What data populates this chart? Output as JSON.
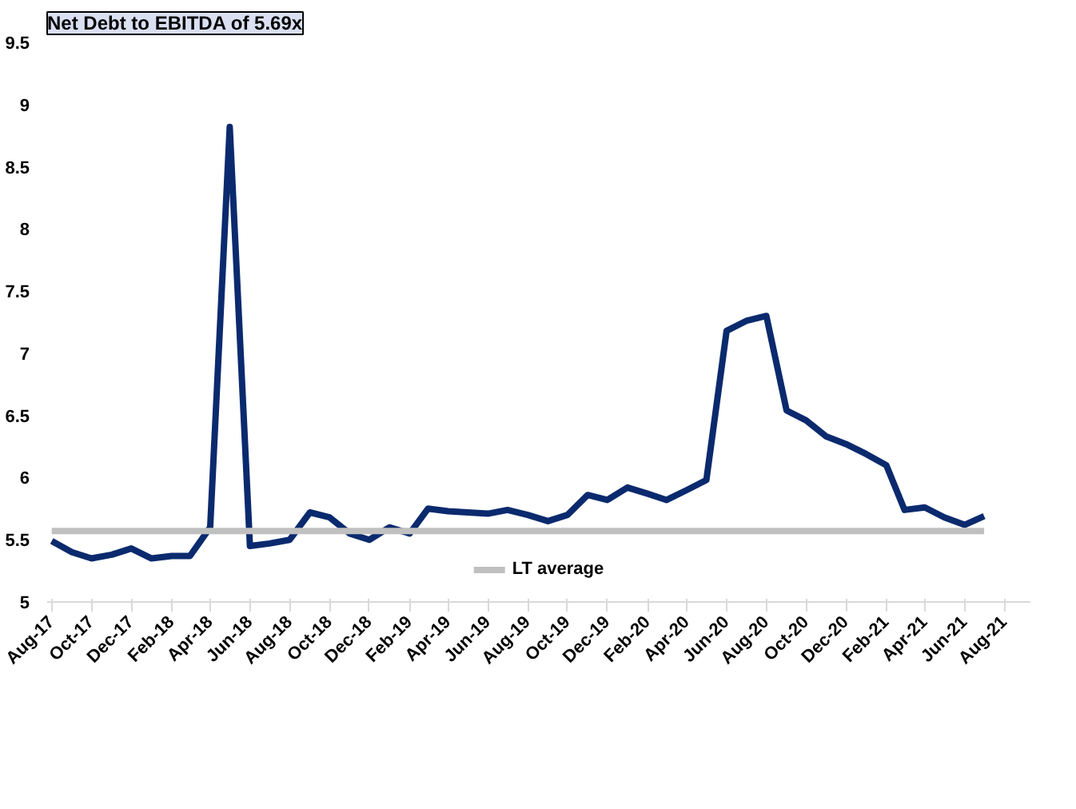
{
  "chart_data": {
    "type": "line",
    "title": "Net Debt to EBITDA of 5.69x",
    "x": [
      "2017-08",
      "2017-09",
      "2017-10",
      "2017-11",
      "2017-12",
      "2018-01",
      "2018-02",
      "2018-03",
      "2018-04",
      "2018-05",
      "2018-06",
      "2018-07",
      "2018-08",
      "2018-09",
      "2018-10",
      "2018-11",
      "2018-12",
      "2019-01",
      "2019-02",
      "2019-03",
      "2019-04",
      "2019-05",
      "2019-06",
      "2019-07",
      "2019-08",
      "2019-09",
      "2019-10",
      "2019-11",
      "2019-12",
      "2020-01",
      "2020-02",
      "2020-03",
      "2020-04",
      "2020-05",
      "2020-06",
      "2020-07",
      "2020-08",
      "2020-09",
      "2020-10",
      "2020-11",
      "2020-12",
      "2021-01",
      "2021-02",
      "2021-03",
      "2021-04",
      "2021-05",
      "2021-06",
      "2021-07"
    ],
    "series": [
      {
        "color": "#0b2a6e",
        "values": [
          5.49,
          5.4,
          5.35,
          5.38,
          5.43,
          5.35,
          5.37,
          5.37,
          5.6,
          8.82,
          5.45,
          5.47,
          5.5,
          5.72,
          5.68,
          5.55,
          5.5,
          5.6,
          5.55,
          5.75,
          5.73,
          5.72,
          5.71,
          5.74,
          5.7,
          5.65,
          5.7,
          5.86,
          5.82,
          5.92,
          5.87,
          5.82,
          5.9,
          5.98,
          7.18,
          7.26,
          7.3,
          6.54,
          6.46,
          6.33,
          6.27,
          6.19,
          6.1,
          5.74,
          5.76,
          5.68,
          5.62,
          5.69
        ]
      },
      {
        "name": "LT average",
        "color": "#c0c0c0",
        "values": [
          5.57,
          5.57,
          5.57,
          5.57,
          5.57,
          5.57,
          5.57,
          5.57,
          5.57,
          5.57,
          5.57,
          5.57,
          5.57,
          5.57,
          5.57,
          5.57,
          5.57,
          5.57,
          5.57,
          5.57,
          5.57,
          5.57,
          5.57,
          5.57,
          5.57,
          5.57,
          5.57,
          5.57,
          5.57,
          5.57,
          5.57,
          5.57,
          5.57,
          5.57,
          5.57,
          5.57,
          5.57,
          5.57,
          5.57,
          5.57,
          5.57,
          5.57,
          5.57,
          5.57,
          5.57,
          5.57,
          5.57,
          5.57
        ]
      }
    ],
    "xlim": [
      "2017-07-25",
      "2021-09-10"
    ],
    "xticks": [
      {
        "value": "2017-08",
        "label": "Aug-17"
      },
      {
        "value": "2017-10",
        "label": "Oct-17"
      },
      {
        "value": "2017-12",
        "label": "Dec-17"
      },
      {
        "value": "2018-02",
        "label": "Feb-18"
      },
      {
        "value": "2018-04",
        "label": "Apr-18"
      },
      {
        "value": "2018-06",
        "label": "Jun-18"
      },
      {
        "value": "2018-08",
        "label": "Aug-18"
      },
      {
        "value": "2018-10",
        "label": "Oct-18"
      },
      {
        "value": "2018-12",
        "label": "Dec-18"
      },
      {
        "value": "2019-02",
        "label": "Feb-19"
      },
      {
        "value": "2019-04",
        "label": "Apr-19"
      },
      {
        "value": "2019-06",
        "label": "Jun-19"
      },
      {
        "value": "2019-08",
        "label": "Aug-19"
      },
      {
        "value": "2019-10",
        "label": "Oct-19"
      },
      {
        "value": "2019-12",
        "label": "Dec-19"
      },
      {
        "value": "2020-02",
        "label": "Feb-20"
      },
      {
        "value": "2020-04",
        "label": "Apr-20"
      },
      {
        "value": "2020-06",
        "label": "Jun-20"
      },
      {
        "value": "2020-08",
        "label": "Aug-20"
      },
      {
        "value": "2020-10",
        "label": "Oct-20"
      },
      {
        "value": "2020-12",
        "label": "Dec-20"
      },
      {
        "value": "2021-02",
        "label": "Feb-21"
      },
      {
        "value": "2021-04",
        "label": "Apr-21"
      },
      {
        "value": "2021-06",
        "label": "Jun-21"
      },
      {
        "value": "2021-08",
        "label": "Aug-21"
      }
    ],
    "ylim": [
      5,
      9.5
    ],
    "yticks": [
      5,
      5.5,
      6,
      6.5,
      7,
      7.5,
      8,
      8.5,
      9,
      9.5
    ],
    "grid": false,
    "legend": "bottom"
  }
}
